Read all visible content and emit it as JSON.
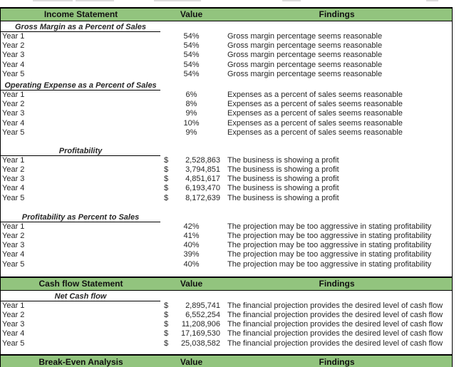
{
  "colors": {
    "header_green": "#92C47E",
    "border": "#000000"
  },
  "currency_symbol": "$",
  "headers": [
    {
      "title": "Income Statement",
      "value_label": "Value",
      "findings_label": "Findings"
    },
    {
      "title": "Cash flow Statement",
      "value_label": "Value",
      "findings_label": "Findings"
    },
    {
      "title": "Break-Even Analysis",
      "value_label": "Value",
      "findings_label": "Findings"
    }
  ],
  "income_groups": [
    {
      "title": "Gross Margin as a Percent of Sales",
      "rows": [
        {
          "label": "Year 1",
          "currency": false,
          "value": "54%",
          "finding": "Gross margin percentage seems reasonable"
        },
        {
          "label": "Year 2",
          "currency": false,
          "value": "54%",
          "finding": "Gross margin percentage seems reasonable"
        },
        {
          "label": "Year 3",
          "currency": false,
          "value": "54%",
          "finding": "Gross margin percentage seems reasonable"
        },
        {
          "label": "Year 4",
          "currency": false,
          "value": "54%",
          "finding": "Gross margin percentage seems reasonable"
        },
        {
          "label": "Year 5",
          "currency": false,
          "value": "54%",
          "finding": "Gross margin percentage seems reasonable"
        }
      ]
    },
    {
      "title": "Operating Expense as a Percent of Sales",
      "rows": [
        {
          "label": "Year 1",
          "currency": false,
          "value": "6%",
          "finding": "Expenses as a percent of sales seems reasonable"
        },
        {
          "label": "Year 2",
          "currency": false,
          "value": "8%",
          "finding": "Expenses as a percent of sales seems reasonable"
        },
        {
          "label": "Year 3",
          "currency": false,
          "value": "9%",
          "finding": "Expenses as a percent of sales seems reasonable"
        },
        {
          "label": "Year 4",
          "currency": false,
          "value": "10%",
          "finding": "Expenses as a percent of sales seems reasonable"
        },
        {
          "label": "Year 5",
          "currency": false,
          "value": "9%",
          "finding": "Expenses as a percent of sales seems reasonable"
        }
      ]
    },
    {
      "title": "Profitability",
      "rows": [
        {
          "label": "Year 1",
          "currency": true,
          "value": "2,528,863",
          "finding": "The business is showing a profit"
        },
        {
          "label": "Year 2",
          "currency": true,
          "value": "3,794,851",
          "finding": "The business is showing a profit"
        },
        {
          "label": "Year 3",
          "currency": true,
          "value": "4,851,617",
          "finding": "The business is showing a profit"
        },
        {
          "label": "Year 4",
          "currency": true,
          "value": "6,193,470",
          "finding": "The business is showing a profit"
        },
        {
          "label": "Year 5",
          "currency": true,
          "value": "8,172,639",
          "finding": "The business is showing a profit"
        }
      ]
    },
    {
      "title": "Profitability as Percent to Sales",
      "rows": [
        {
          "label": "Year 1",
          "currency": false,
          "value": "42%",
          "finding": "The projection may be too aggressive in stating profitability"
        },
        {
          "label": "Year 2",
          "currency": false,
          "value": "41%",
          "finding": "The projection may be too aggressive in stating profitability"
        },
        {
          "label": "Year 3",
          "currency": false,
          "value": "40%",
          "finding": "The projection may be too aggressive in stating profitability"
        },
        {
          "label": "Year 4",
          "currency": false,
          "value": "39%",
          "finding": "The projection may be too aggressive in stating profitability"
        },
        {
          "label": "Year 5",
          "currency": false,
          "value": "40%",
          "finding": "The projection may be too aggressive in stating profitability"
        }
      ]
    }
  ],
  "cashflow_groups": [
    {
      "title": "Net Cash flow",
      "rows": [
        {
          "label": "Year 1",
          "currency": true,
          "value": "2,895,741",
          "finding": "The financial projection provides the desired level of cash flow"
        },
        {
          "label": "Year 2",
          "currency": true,
          "value": "6,552,254",
          "finding": "The financial projection provides the desired level of cash flow"
        },
        {
          "label": "Year 3",
          "currency": true,
          "value": "11,208,906",
          "finding": "The financial projection provides the desired level of cash flow"
        },
        {
          "label": "Year 4",
          "currency": true,
          "value": "17,169,530",
          "finding": "The financial projection provides the desired level of cash flow"
        },
        {
          "label": "Year 5",
          "currency": true,
          "value": "25,038,582",
          "finding": "The financial projection provides the desired level of cash flow"
        }
      ]
    }
  ]
}
